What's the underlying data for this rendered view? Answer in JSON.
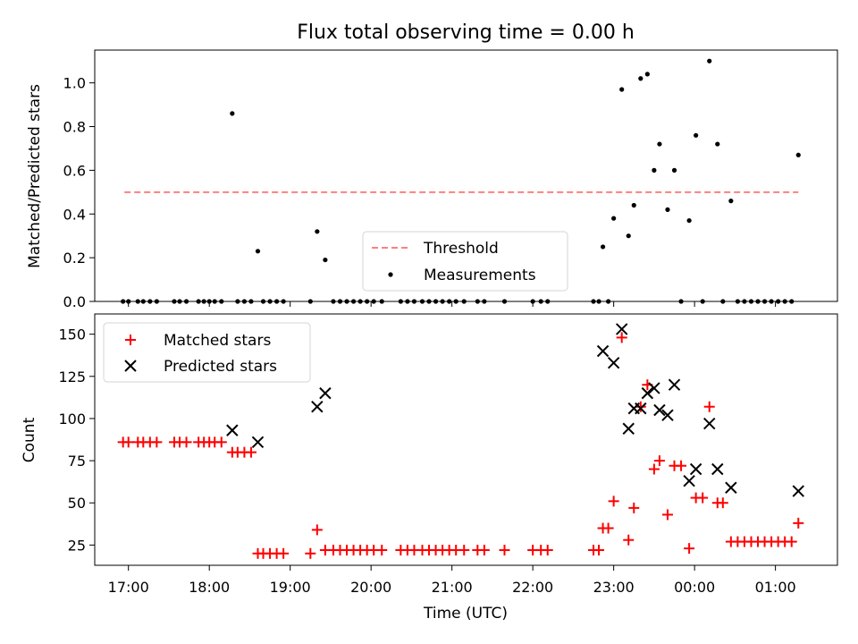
{
  "figure": {
    "title": "Flux total observing time = 0.00 h",
    "xlabel": "Time (UTC)"
  },
  "chart_data": [
    {
      "type": "scatter",
      "ylabel": "Matched/Predicted stars",
      "xlim": [
        "16:35",
        "01:46"
      ],
      "ylim": [
        0,
        1.15
      ],
      "yticks": [
        0.0,
        0.2,
        0.4,
        0.6,
        0.8,
        1.0
      ],
      "xticks": [
        "17:00",
        "18:00",
        "19:00",
        "20:00",
        "21:00",
        "22:00",
        "23:00",
        "00:00",
        "01:00"
      ],
      "legend": {
        "placement": "lower-center",
        "entries": [
          "Threshold",
          "Measurements"
        ]
      },
      "threshold": {
        "name": "Threshold",
        "value": 0.5,
        "x_range": [
          "16:57",
          "01:17"
        ],
        "color": "#ff7f7f"
      },
      "series": [
        {
          "name": "Measurements",
          "color": "#000000",
          "points": [
            [
              "16:56",
              0
            ],
            [
              "17:00",
              0
            ],
            [
              "17:07",
              0
            ],
            [
              "17:11",
              0
            ],
            [
              "17:16",
              0
            ],
            [
              "17:21",
              0
            ],
            [
              "17:34",
              0
            ],
            [
              "17:38",
              0
            ],
            [
              "17:43",
              0
            ],
            [
              "17:52",
              0
            ],
            [
              "17:56",
              0
            ],
            [
              "18:00",
              0
            ],
            [
              "18:04",
              0
            ],
            [
              "18:09",
              0
            ],
            [
              "18:17",
              0.86
            ],
            [
              "18:21",
              0
            ],
            [
              "18:26",
              0
            ],
            [
              "18:31",
              0
            ],
            [
              "18:36",
              0.23
            ],
            [
              "18:40",
              0
            ],
            [
              "18:45",
              0
            ],
            [
              "18:50",
              0
            ],
            [
              "18:55",
              0
            ],
            [
              "19:15",
              0
            ],
            [
              "19:20",
              0.32
            ],
            [
              "19:26",
              0.19
            ],
            [
              "19:32",
              0
            ],
            [
              "19:37",
              0
            ],
            [
              "19:42",
              0
            ],
            [
              "19:47",
              0
            ],
            [
              "19:52",
              0
            ],
            [
              "19:57",
              0
            ],
            [
              "20:02",
              0
            ],
            [
              "20:08",
              0
            ],
            [
              "20:22",
              0
            ],
            [
              "20:27",
              0
            ],
            [
              "20:32",
              0
            ],
            [
              "20:38",
              0
            ],
            [
              "20:43",
              0
            ],
            [
              "20:48",
              0
            ],
            [
              "20:53",
              0
            ],
            [
              "20:58",
              0
            ],
            [
              "21:03",
              0
            ],
            [
              "21:09",
              0
            ],
            [
              "21:19",
              0
            ],
            [
              "21:24",
              0
            ],
            [
              "21:39",
              0
            ],
            [
              "22:00",
              0
            ],
            [
              "22:06",
              0
            ],
            [
              "22:11",
              0
            ],
            [
              "22:45",
              0
            ],
            [
              "22:49",
              0
            ],
            [
              "22:52",
              0.25
            ],
            [
              "22:56",
              0
            ],
            [
              "23:00",
              0.38
            ],
            [
              "23:06",
              0.97
            ],
            [
              "23:11",
              0.3
            ],
            [
              "23:15",
              0.44
            ],
            [
              "23:20",
              1.02
            ],
            [
              "23:25",
              1.04
            ],
            [
              "23:30",
              0.6
            ],
            [
              "23:34",
              0.72
            ],
            [
              "23:40",
              0.42
            ],
            [
              "23:45",
              0.6
            ],
            [
              "23:50",
              0
            ],
            [
              "23:56",
              0.37
            ],
            [
              "00:01",
              0.76
            ],
            [
              "00:06",
              0
            ],
            [
              "00:11",
              1.1
            ],
            [
              "00:17",
              0.72
            ],
            [
              "00:21",
              0
            ],
            [
              "00:27",
              0.46
            ],
            [
              "00:32",
              0
            ],
            [
              "00:37",
              0
            ],
            [
              "00:42",
              0
            ],
            [
              "00:47",
              0
            ],
            [
              "00:52",
              0
            ],
            [
              "00:57",
              0
            ],
            [
              "01:02",
              0
            ],
            [
              "01:07",
              0
            ],
            [
              "01:12",
              0
            ],
            [
              "01:17",
              0.67
            ]
          ]
        }
      ]
    },
    {
      "type": "scatter",
      "ylabel": "Count",
      "xlim": [
        "16:35",
        "01:46"
      ],
      "ylim": [
        13,
        162
      ],
      "yticks": [
        25,
        50,
        75,
        100,
        125,
        150
      ],
      "xticks": [
        "17:00",
        "18:00",
        "19:00",
        "20:00",
        "21:00",
        "22:00",
        "23:00",
        "00:00",
        "01:00"
      ],
      "legend": {
        "placement": "upper-left",
        "entries": [
          "Matched stars",
          "Predicted stars"
        ]
      },
      "series": [
        {
          "name": "Matched stars",
          "marker": "plus",
          "color": "#ff0000",
          "points": [
            [
              "16:56",
              86
            ],
            [
              "17:00",
              86
            ],
            [
              "17:07",
              86
            ],
            [
              "17:11",
              86
            ],
            [
              "17:16",
              86
            ],
            [
              "17:21",
              86
            ],
            [
              "17:34",
              86
            ],
            [
              "17:38",
              86
            ],
            [
              "17:43",
              86
            ],
            [
              "17:52",
              86
            ],
            [
              "17:56",
              86
            ],
            [
              "18:00",
              86
            ],
            [
              "18:04",
              86
            ],
            [
              "18:09",
              86
            ],
            [
              "18:17",
              80
            ],
            [
              "18:21",
              80
            ],
            [
              "18:26",
              80
            ],
            [
              "18:31",
              80
            ],
            [
              "18:36",
              20
            ],
            [
              "18:40",
              20
            ],
            [
              "18:45",
              20
            ],
            [
              "18:50",
              20
            ],
            [
              "18:55",
              20
            ],
            [
              "19:15",
              20
            ],
            [
              "19:20",
              34
            ],
            [
              "19:26",
              22
            ],
            [
              "19:32",
              22
            ],
            [
              "19:37",
              22
            ],
            [
              "19:42",
              22
            ],
            [
              "19:47",
              22
            ],
            [
              "19:52",
              22
            ],
            [
              "19:57",
              22
            ],
            [
              "20:02",
              22
            ],
            [
              "20:08",
              22
            ],
            [
              "20:22",
              22
            ],
            [
              "20:27",
              22
            ],
            [
              "20:32",
              22
            ],
            [
              "20:38",
              22
            ],
            [
              "20:43",
              22
            ],
            [
              "20:48",
              22
            ],
            [
              "20:53",
              22
            ],
            [
              "20:58",
              22
            ],
            [
              "21:03",
              22
            ],
            [
              "21:09",
              22
            ],
            [
              "21:19",
              22
            ],
            [
              "21:24",
              22
            ],
            [
              "21:39",
              22
            ],
            [
              "22:00",
              22
            ],
            [
              "22:06",
              22
            ],
            [
              "22:11",
              22
            ],
            [
              "22:45",
              22
            ],
            [
              "22:49",
              22
            ],
            [
              "22:52",
              35
            ],
            [
              "22:56",
              35
            ],
            [
              "23:00",
              51
            ],
            [
              "23:06",
              148
            ],
            [
              "23:11",
              28
            ],
            [
              "23:15",
              47
            ],
            [
              "23:20",
              107
            ],
            [
              "23:25",
              120
            ],
            [
              "23:30",
              70
            ],
            [
              "23:34",
              75
            ],
            [
              "23:40",
              43
            ],
            [
              "23:45",
              72
            ],
            [
              "23:50",
              72
            ],
            [
              "23:56",
              23
            ],
            [
              "00:01",
              53
            ],
            [
              "00:06",
              53
            ],
            [
              "00:11",
              107
            ],
            [
              "00:17",
              50
            ],
            [
              "00:21",
              50
            ],
            [
              "00:27",
              27
            ],
            [
              "00:32",
              27
            ],
            [
              "00:37",
              27
            ],
            [
              "00:42",
              27
            ],
            [
              "00:47",
              27
            ],
            [
              "00:52",
              27
            ],
            [
              "00:57",
              27
            ],
            [
              "01:02",
              27
            ],
            [
              "01:07",
              27
            ],
            [
              "01:12",
              27
            ],
            [
              "01:17",
              38
            ]
          ]
        },
        {
          "name": "Predicted stars",
          "marker": "x",
          "color": "#000000",
          "points": [
            [
              "18:17",
              93
            ],
            [
              "18:36",
              86
            ],
            [
              "19:20",
              107
            ],
            [
              "19:26",
              115
            ],
            [
              "22:52",
              140
            ],
            [
              "23:00",
              133
            ],
            [
              "23:06",
              153
            ],
            [
              "23:11",
              94
            ],
            [
              "23:15",
              106
            ],
            [
              "23:20",
              106
            ],
            [
              "23:25",
              115
            ],
            [
              "23:30",
              118
            ],
            [
              "23:34",
              105
            ],
            [
              "23:40",
              102
            ],
            [
              "23:45",
              120
            ],
            [
              "23:56",
              63
            ],
            [
              "00:01",
              70
            ],
            [
              "00:11",
              97
            ],
            [
              "00:17",
              70
            ],
            [
              "00:27",
              59
            ],
            [
              "01:17",
              57
            ]
          ]
        }
      ]
    }
  ]
}
